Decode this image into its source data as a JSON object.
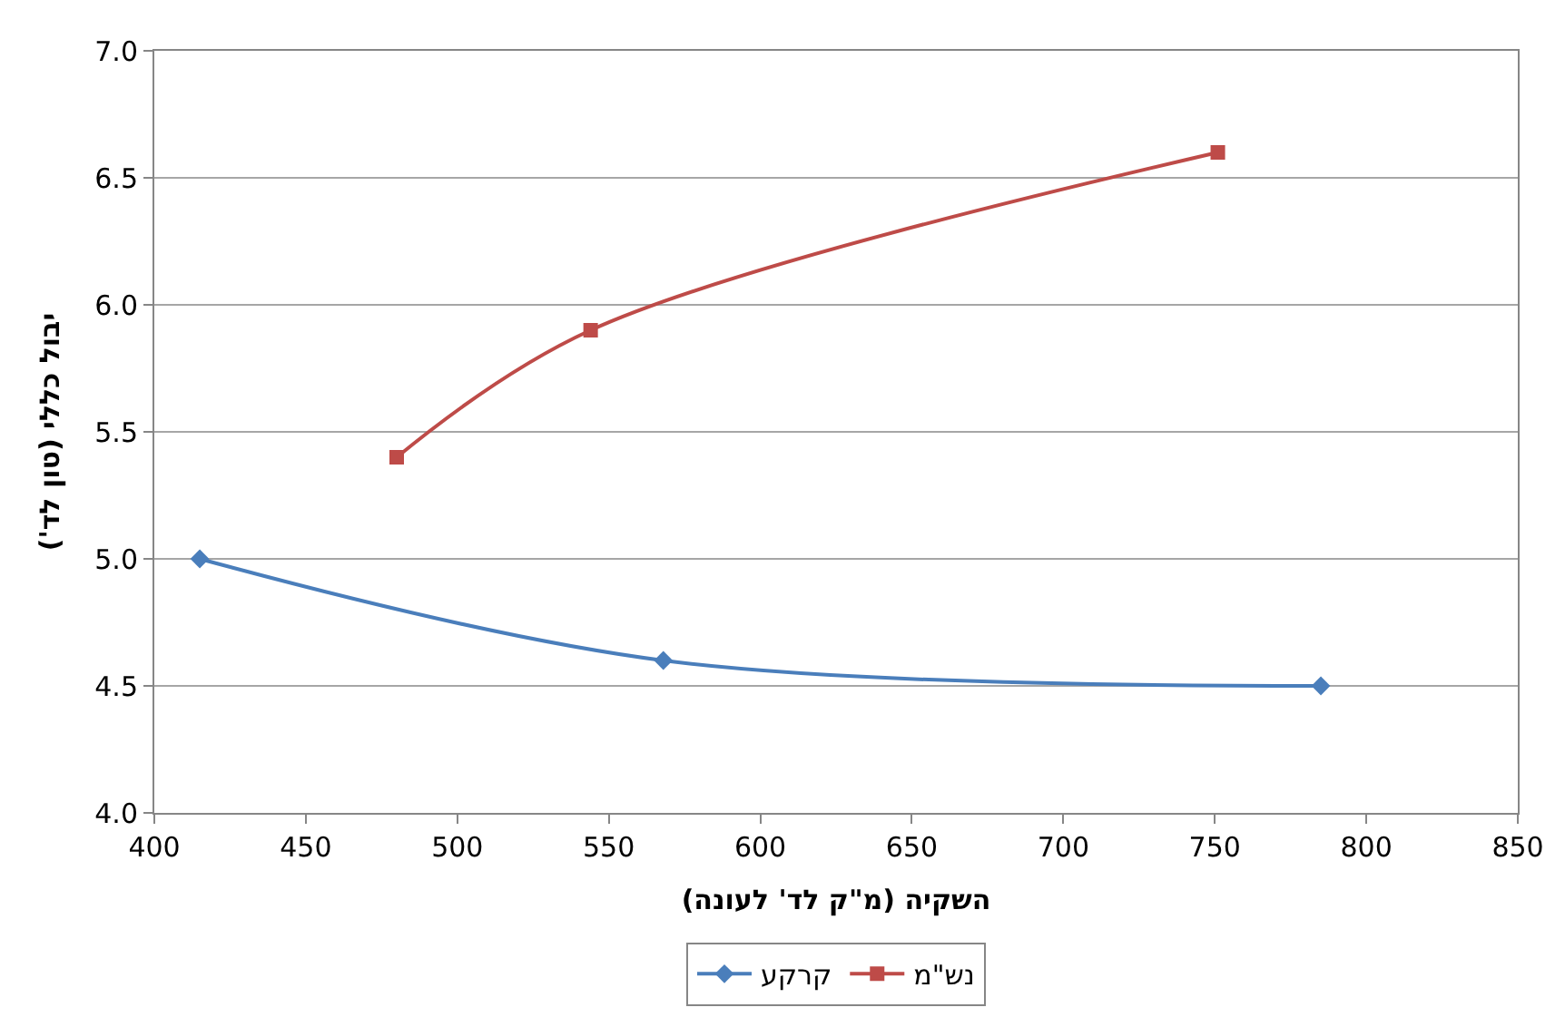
{
  "chart_data": {
    "type": "line",
    "xlabel": "השקיה (מ\"ק לד' לעונה)",
    "ylabel": "יבול כללי (טון לד')",
    "xlim": [
      400,
      850
    ],
    "xticks": [
      400,
      450,
      500,
      550,
      600,
      650,
      700,
      750,
      800,
      850
    ],
    "ylim": [
      4.0,
      7.0
    ],
    "yticks": [
      {
        "value": 4.0,
        "label": "4.0"
      },
      {
        "value": 4.5,
        "label": "4.5"
      },
      {
        "value": 5.0,
        "label": "5.0"
      },
      {
        "value": 5.5,
        "label": "5.5"
      },
      {
        "value": 6.0,
        "label": "6.0"
      },
      {
        "value": 6.5,
        "label": "6.5"
      },
      {
        "value": 7.0,
        "label": "7.0"
      }
    ],
    "grid": "y",
    "legend": "bottom",
    "series": [
      {
        "name": "קרקע",
        "color": "#4a7ebb",
        "marker": "diamond",
        "x": [
          415,
          568,
          785
        ],
        "values": [
          5.0,
          4.6,
          4.5
        ]
      },
      {
        "name": "נש\"מ",
        "color": "#be4b48",
        "marker": "square",
        "x": [
          480,
          544,
          751
        ],
        "values": [
          5.4,
          5.9,
          6.6
        ]
      }
    ]
  }
}
